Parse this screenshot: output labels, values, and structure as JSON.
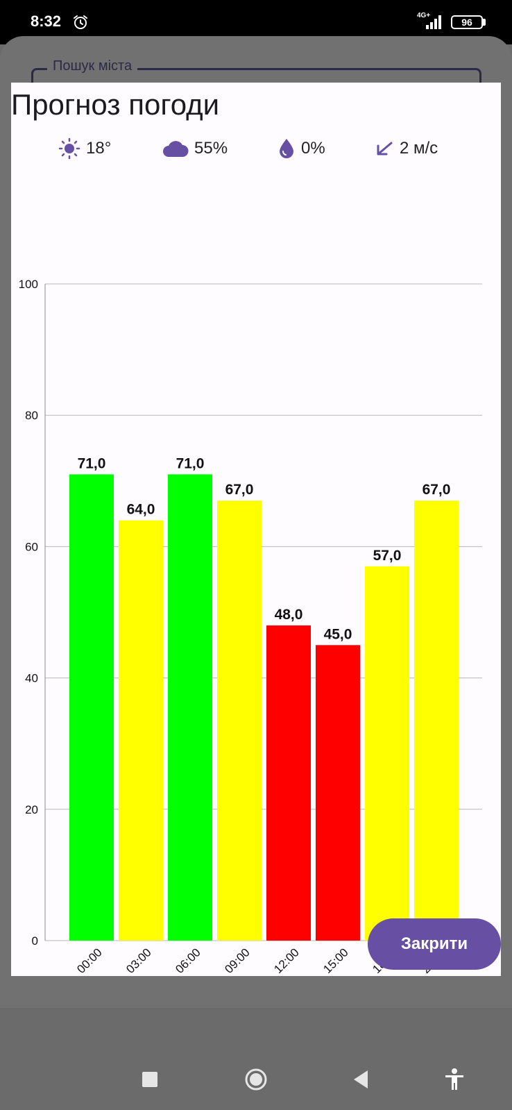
{
  "status_bar": {
    "time": "8:32",
    "network": "4G+",
    "battery": "96"
  },
  "search": {
    "label": "Пошук міста"
  },
  "dialog": {
    "title": "Прогноз погоди",
    "weather": {
      "temperature": "18°",
      "clouds": "55%",
      "precipitation": "0%",
      "wind": "2 м/с"
    },
    "close_label": "Закрити"
  },
  "colors": {
    "accent": "#6750a4",
    "high": "#00ff00",
    "medium": "#ffff00",
    "low": "#ff0000"
  },
  "chart_data": {
    "type": "bar",
    "categories": [
      "00:00",
      "03:00",
      "06:00",
      "09:00",
      "12:00",
      "15:00",
      "18:00",
      "21:00"
    ],
    "values": [
      71,
      64,
      71,
      67,
      48,
      45,
      57,
      67
    ],
    "value_labels": [
      "71,0",
      "64,0",
      "71,0",
      "67,0",
      "48,0",
      "45,0",
      "57,0",
      "67,0"
    ],
    "bar_colors": [
      "#00ff00",
      "#ffff00",
      "#00ff00",
      "#ffff00",
      "#ff0000",
      "#ff0000",
      "#ffff00",
      "#ffff00"
    ],
    "ylim": [
      0,
      100
    ],
    "yticks": [
      0,
      20,
      40,
      60,
      80,
      100
    ],
    "grid": true,
    "title": "",
    "xlabel": "",
    "ylabel": ""
  }
}
